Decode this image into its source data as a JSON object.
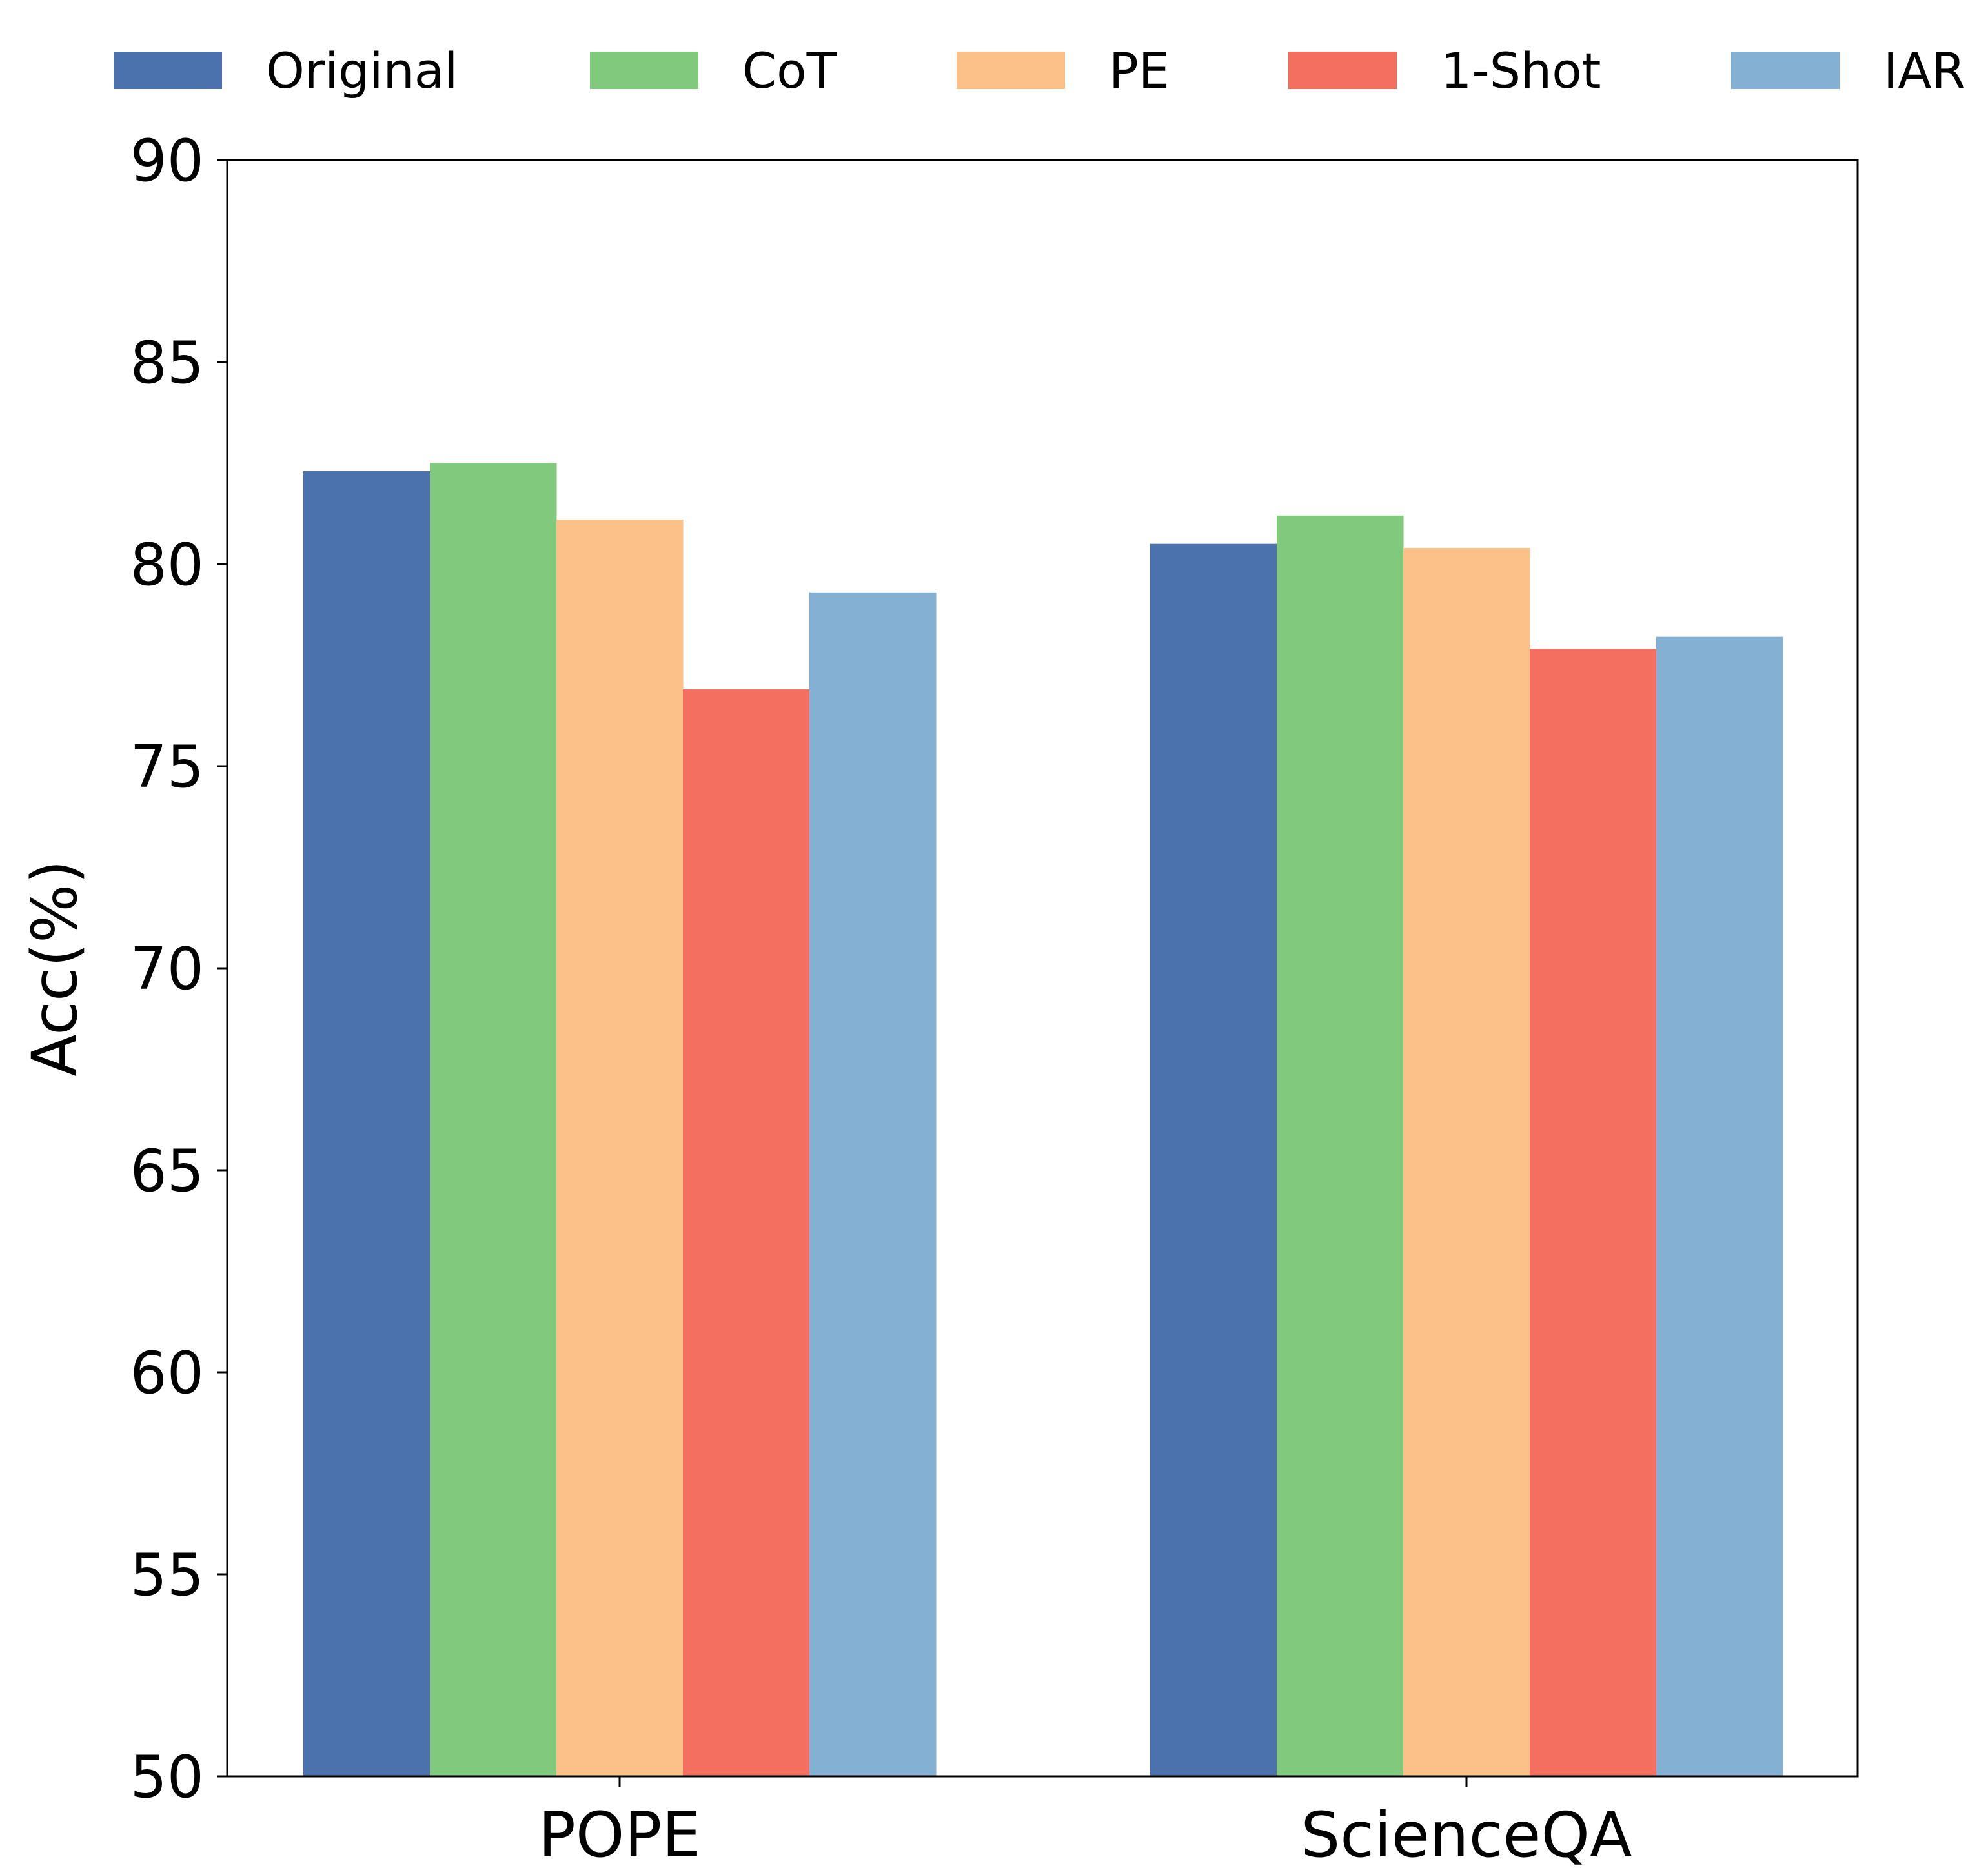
{
  "chart_data": {
    "type": "bar",
    "title": "",
    "xlabel": "",
    "ylabel": "Acc(%)",
    "ylim": [
      50,
      90
    ],
    "yticks": [
      50,
      55,
      60,
      65,
      70,
      75,
      80,
      85,
      90
    ],
    "grid": false,
    "legend_position": "top",
    "categories": [
      "POPE",
      "ScienceQA"
    ],
    "series": [
      {
        "name": "Original",
        "color": "#4c72ad",
        "values": [
          82.3,
          80.5
        ]
      },
      {
        "name": "CoT",
        "color": "#80c97d",
        "values": [
          82.5,
          81.2
        ]
      },
      {
        "name": "PE",
        "color": "#fcc089",
        "values": [
          81.1,
          80.4
        ]
      },
      {
        "name": "1-Shot",
        "color": "#f56f61",
        "values": [
          76.9,
          77.9
        ]
      },
      {
        "name": "IAR",
        "color": "#84b1d3",
        "values": [
          79.3,
          78.2
        ]
      }
    ]
  }
}
